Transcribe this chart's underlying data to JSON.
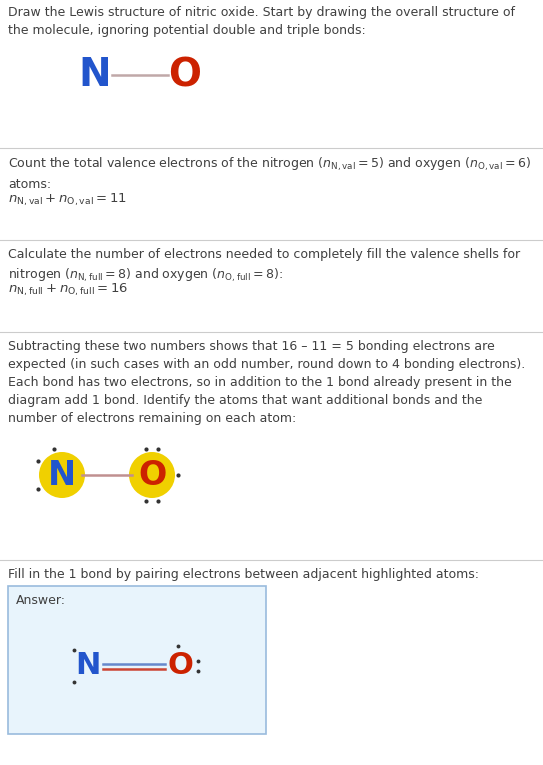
{
  "bg_color": "#ffffff",
  "text_color": "#404040",
  "N_color": "#2255cc",
  "O_color": "#cc2200",
  "bond_color_light": "#c8a8a8",
  "yellow_highlight": "#f0d000",
  "answer_bg": "#e8f4fc",
  "answer_border": "#99bbdd",
  "figw": 5.43,
  "figh": 7.65,
  "dpi": 100,
  "sec1_title": "Draw the Lewis structure of nitric oxide. Start by drawing the overall structure of\nthe molecule, ignoring potential double and triple bonds:",
  "sec2_para": "Count the total valence electrons of the nitrogen ($n_{\\mathrm{N,val}} = 5$) and oxygen ($n_{\\mathrm{O,val}} = 6$)\natoms:",
  "sec2_eq": "$n_{\\mathrm{N,val}} + n_{\\mathrm{O,val}} = 11$",
  "sec3_para": "Calculate the number of electrons needed to completely fill the valence shells for\nnitrogen ($n_{\\mathrm{N,full}} = 8$) and oxygen ($n_{\\mathrm{O,full}} = 8$):",
  "sec3_eq": "$n_{\\mathrm{N,full}} + n_{\\mathrm{O,full}} = 16$",
  "sec4_para": "Subtracting these two numbers shows that 16 – 11 = 5 bonding electrons are\nexpected (in such cases with an odd number, round down to 4 bonding electrons).\nEach bond has two electrons, so in addition to the 1 bond already present in the\ndiagram add 1 bond. Identify the atoms that want additional bonds and the\nnumber of electrons remaining on each atom:",
  "sec5_para": "Fill in the 1 bond by pairing electrons between adjacent highlighted atoms:",
  "answer_label": "Answer:"
}
